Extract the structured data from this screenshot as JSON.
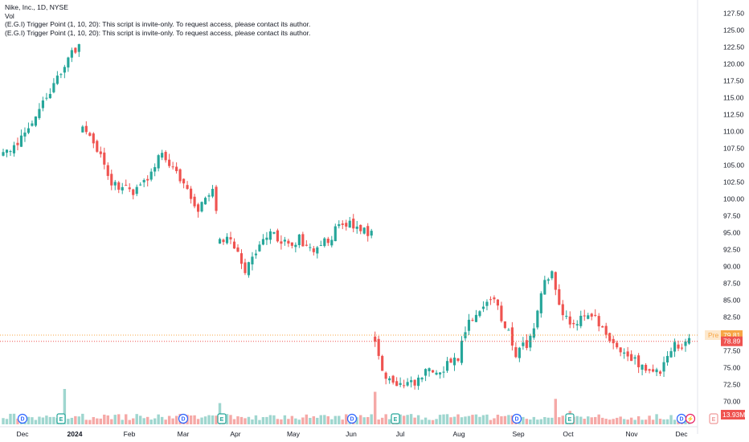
{
  "legend": {
    "symbol_line": "Nike, Inc., 1D, NYSE",
    "vol_line": "Vol",
    "indicator_lines": [
      "(E.G.I) Trigger Point  (1, 10, 20): This script is invite-only. To request access, please contact its author.",
      "(E.G.I) Trigger Point  (1, 10, 20): This script is invite-only. To request access, please contact its author."
    ]
  },
  "colors": {
    "up": "#26a69a",
    "down": "#ef5350",
    "up_volume": "#9fd6cf",
    "down_volume": "#f5a9a7",
    "pre_tag": "#f7a645",
    "last_tag": "#ef5350",
    "marker_blue": "#2962ff",
    "marker_green": "#26a69a"
  },
  "tags": {
    "pre_label": "Pre",
    "pre_value": "79.81",
    "last_value": "78.89",
    "volume_value": "13.93M"
  },
  "event_markers": [
    "D",
    "E",
    "D",
    "E",
    "D",
    "E",
    "D",
    "E",
    "D",
    "⚡",
    "E"
  ],
  "chart_data": {
    "type": "candlestick",
    "title": "Nike, Inc., 1D, NYSE",
    "y_axis": {
      "ticks": [
        70.0,
        72.5,
        75.0,
        77.5,
        80.0,
        82.5,
        85.0,
        87.5,
        90.0,
        92.5,
        95.0,
        97.5,
        100.0,
        102.5,
        105.0,
        107.5,
        110.0,
        112.5,
        115.0,
        117.5,
        120.0,
        122.5,
        125.0,
        127.5
      ],
      "labels": [
        "70.00",
        "72.50",
        "75.00",
        "77.50",
        "80.00",
        "82.50",
        "85.00",
        "87.50",
        "90.00",
        "92.50",
        "95.00",
        "97.50",
        "100.00",
        "102.50",
        "105.00",
        "107.50",
        "110.00",
        "112.50",
        "115.00",
        "117.50",
        "120.00",
        "122.50",
        "125.00",
        "127.50"
      ],
      "ylim": [
        68.5,
        128.5
      ]
    },
    "x_axis": {
      "labels": [
        "Dec",
        "2024",
        "Feb",
        "Mar",
        "Apr",
        "May",
        "Jun",
        "Jul",
        "Aug",
        "Sep",
        "Oct",
        "Nov",
        "Dec"
      ],
      "bold": [
        "2024"
      ]
    },
    "price_path": [
      [
        0,
        106.5
      ],
      [
        4,
        108.5
      ],
      [
        10,
        113.5
      ],
      [
        14,
        117.0
      ],
      [
        18,
        121.0
      ],
      [
        21,
        122.5
      ],
      [
        22,
        110.0
      ],
      [
        26,
        107.5
      ],
      [
        30,
        102.5
      ],
      [
        36,
        101.0
      ],
      [
        40,
        103.5
      ],
      [
        44,
        107.0
      ],
      [
        50,
        102.0
      ],
      [
        54,
        98.5
      ],
      [
        58,
        101.5
      ],
      [
        60,
        94.5
      ],
      [
        64,
        93.0
      ],
      [
        67,
        89.5
      ],
      [
        70,
        92.5
      ],
      [
        74,
        95.0
      ],
      [
        78,
        93.5
      ],
      [
        82,
        94.0
      ],
      [
        86,
        92.5
      ],
      [
        90,
        94.0
      ],
      [
        94,
        96.5
      ],
      [
        100,
        95.0
      ],
      [
        102,
        94.5
      ],
      [
        103,
        78.5
      ],
      [
        106,
        73.5
      ],
      [
        110,
        72.0
      ],
      [
        114,
        73.0
      ],
      [
        118,
        74.5
      ],
      [
        122,
        75.0
      ],
      [
        126,
        76.5
      ],
      [
        128,
        80.5
      ],
      [
        132,
        84.0
      ],
      [
        136,
        84.5
      ],
      [
        140,
        80.5
      ],
      [
        142,
        77.0
      ],
      [
        146,
        79.0
      ],
      [
        148,
        83.0
      ],
      [
        150,
        88.0
      ],
      [
        152,
        89.5
      ],
      [
        154,
        84.0
      ],
      [
        158,
        81.0
      ],
      [
        162,
        83.0
      ],
      [
        164,
        82.5
      ],
      [
        168,
        79.0
      ],
      [
        172,
        76.5
      ],
      [
        176,
        75.5
      ],
      [
        180,
        74.5
      ],
      [
        182,
        73.5
      ],
      [
        184,
        77.5
      ],
      [
        188,
        78.5
      ],
      [
        190,
        79.2
      ]
    ],
    "volume_spikes": [
      {
        "bar": 17,
        "value": 1.0
      },
      {
        "bar": 60,
        "value": 0.6
      },
      {
        "bar": 103,
        "value": 0.92
      },
      {
        "bar": 153,
        "value": 0.72
      },
      {
        "bar": 157,
        "value": 0.38
      }
    ]
  }
}
